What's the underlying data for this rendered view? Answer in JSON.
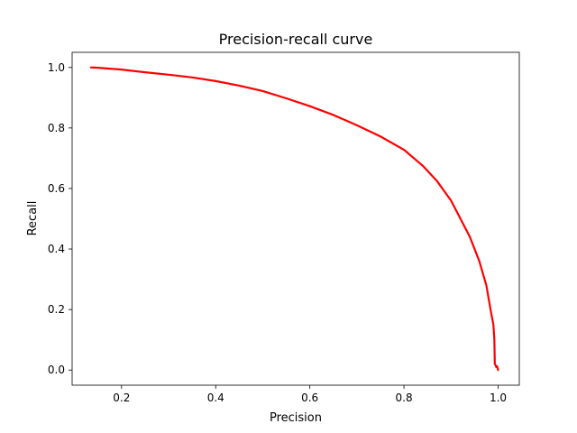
{
  "chart_data": {
    "type": "line",
    "title": "Precision-recall curve",
    "xlabel": "Precision",
    "ylabel": "Recall",
    "xlim": [
      0.095,
      1.045
    ],
    "ylim": [
      -0.05,
      1.05
    ],
    "xticks": [
      0.2,
      0.4,
      0.6,
      0.8,
      1.0
    ],
    "xtick_labels": [
      "0.2",
      "0.4",
      "0.6",
      "0.8",
      "1.0"
    ],
    "yticks": [
      0.0,
      0.2,
      0.4,
      0.6,
      0.8,
      1.0
    ],
    "ytick_labels": [
      "0.0",
      "0.2",
      "0.4",
      "0.6",
      "0.8",
      "1.0"
    ],
    "grid": false,
    "series": [
      {
        "color": "#ff0000",
        "x": [
          0.135,
          0.15,
          0.2,
          0.25,
          0.3,
          0.35,
          0.4,
          0.45,
          0.5,
          0.55,
          0.6,
          0.65,
          0.7,
          0.75,
          0.8,
          0.84,
          0.87,
          0.9,
          0.92,
          0.94,
          0.96,
          0.975,
          0.985,
          0.99,
          0.992,
          0.993,
          0.995,
          0.996,
          0.998,
          1.0,
          1.0
        ],
        "y": [
          1.0,
          0.999,
          0.993,
          0.984,
          0.976,
          0.967,
          0.955,
          0.94,
          0.922,
          0.898,
          0.872,
          0.843,
          0.809,
          0.772,
          0.728,
          0.675,
          0.625,
          0.56,
          0.5,
          0.44,
          0.36,
          0.28,
          0.19,
          0.15,
          0.1,
          0.02,
          0.015,
          0.01,
          0.012,
          0.0,
          0.0
        ]
      }
    ]
  }
}
